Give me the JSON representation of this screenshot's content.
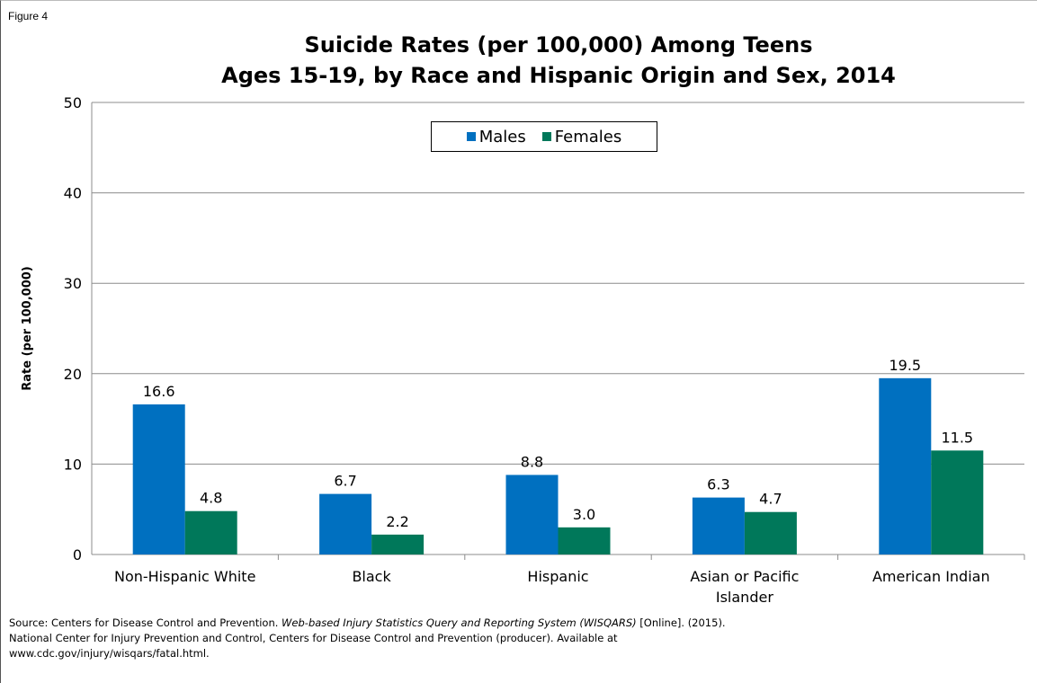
{
  "figure_label": "Figure 4",
  "chart_data": {
    "type": "bar",
    "title": "Suicide Rates (per 100,000) Among Teens",
    "subtitle": "Ages 15-19, by Race and Hispanic Origin and Sex, 2014",
    "xlabel": "",
    "ylabel": "Rate (per 100,000)",
    "ylim": [
      0,
      50
    ],
    "yticks": [
      "0",
      "10",
      "20",
      "30",
      "40",
      "50"
    ],
    "categories": [
      "Non-Hispanic White",
      "Black",
      "Hispanic",
      "Asian or Pacific Islander",
      "American Indian"
    ],
    "series": [
      {
        "name": "Males",
        "values": [
          16.6,
          6.7,
          8.8,
          6.3,
          19.5
        ],
        "labels": [
          "16.6",
          "6.7",
          "8.8",
          "6.3",
          "19.5"
        ],
        "color": "#0070C0"
      },
      {
        "name": "Females",
        "values": [
          4.8,
          2.2,
          3.0,
          4.7,
          11.5
        ],
        "labels": [
          "4.8",
          "2.2",
          "3.0",
          "4.7",
          "11.5"
        ],
        "color": "#00785A"
      }
    ],
    "grid": true,
    "legend_position": "top-center"
  },
  "source": {
    "lead": "Source:  Centers for Disease Control and Prevention. ",
    "italic": "Web-based Injury Statistics Query and Reporting System (WISQARS)",
    "rest": " [Online]. (2015). National Center for Injury Prevention and Control, Centers for Disease Control and Prevention (producer).  Available at www.cdc.gov/injury/wisqars/fatal.html."
  }
}
